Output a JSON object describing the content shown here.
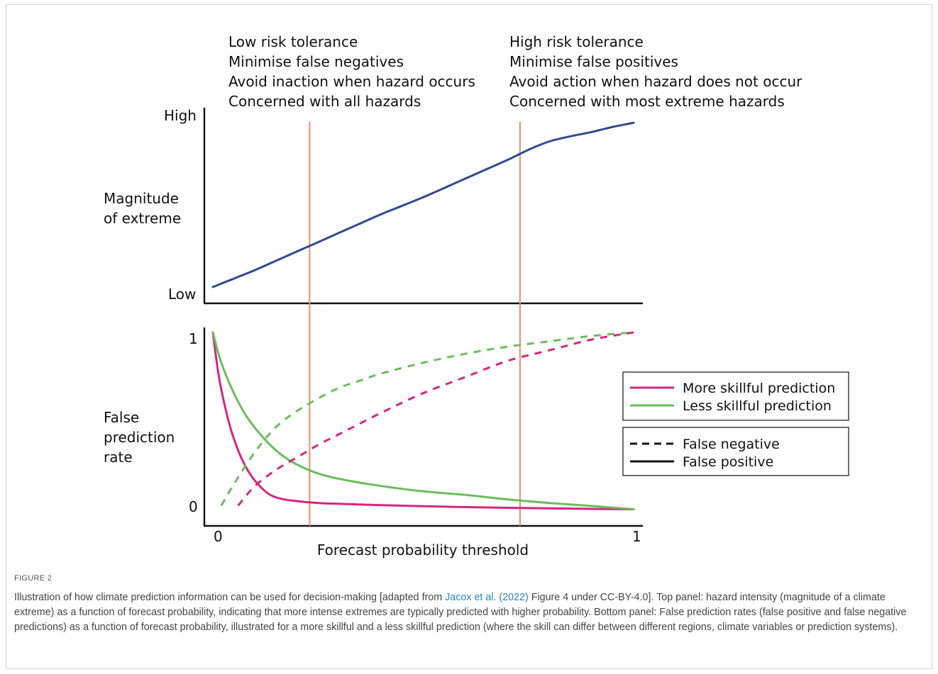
{
  "figure_label": "FIGURE 2",
  "caption": {
    "before_link": "Illustration of how climate prediction information can be used for decision-making [adapted from ",
    "link_text": "Jacox et al. (2022)",
    "after_link": " Figure 4 under CC-BY-4.0]. Top panel: hazard intensity (magnitude of a climate extreme) as a function of forecast probability, indicating that more intense extremes are typically predicted with higher probability. Bottom panel: False prediction rates (false positive and false negative predictions) as a function of forecast probability, illustrated for a more skillful and a less skillful prediction (where the skill can differ between different regions, climate variables or prediction systems)."
  },
  "annotations": {
    "left": [
      "Low risk tolerance",
      "Minimise false negatives",
      "Avoid inaction when hazard occurs",
      "Concerned with all hazards"
    ],
    "right": [
      "High risk tolerance",
      "Minimise false positives",
      "Avoid action when hazard does not occur",
      "Concerned with most extreme hazards"
    ]
  },
  "colors": {
    "magnitude_line": "#2e4a94",
    "threshold_line": "#ec8a66",
    "more_skillful": "#d6267f",
    "less_skillful": "#6bbd5b",
    "axis": "#111111"
  },
  "chart_data": [
    {
      "type": "line",
      "panel": "top",
      "ylabel": [
        "Magnitude",
        "of extreme"
      ],
      "y_tick_labels": [
        "High",
        "Low"
      ],
      "x_range": [
        0,
        1
      ],
      "y_range": [
        0,
        1
      ],
      "series": [
        {
          "x": [
            0,
            0.05,
            0.1,
            0.15,
            0.2,
            0.25,
            0.3,
            0.35,
            0.4,
            0.45,
            0.5,
            0.55,
            0.6,
            0.65,
            0.7,
            0.75,
            0.8,
            0.85,
            0.9,
            0.95,
            1
          ],
          "values": [
            0,
            0.05,
            0.1,
            0.155,
            0.21,
            0.265,
            0.32,
            0.375,
            0.43,
            0.48,
            0.53,
            0.585,
            0.64,
            0.695,
            0.75,
            0.81,
            0.86,
            0.89,
            0.915,
            0.945,
            0.97
          ]
        }
      ],
      "vertical_lines_x": [
        0.23,
        0.73
      ]
    },
    {
      "type": "line",
      "panel": "bottom",
      "ylabel": [
        "False",
        "prediction",
        "rate"
      ],
      "xlabel": "Forecast probability threshold",
      "x_tick_labels": [
        "0",
        "1"
      ],
      "y_tick_labels": [
        "1",
        "0"
      ],
      "x_range": [
        0,
        1
      ],
      "y_range": [
        0,
        1
      ],
      "series": [
        {
          "color_key": "more_skillful",
          "dash": "solid",
          "x": [
            0,
            0.01,
            0.02,
            0.04,
            0.06,
            0.08,
            0.1,
            0.13,
            0.16,
            0.2,
            0.25,
            0.3,
            0.4,
            0.5,
            0.6,
            0.7,
            0.8,
            0.9,
            1
          ],
          "values": [
            1,
            0.82,
            0.68,
            0.48,
            0.34,
            0.24,
            0.17,
            0.1,
            0.07,
            0.055,
            0.045,
            0.04,
            0.033,
            0.027,
            0.022,
            0.018,
            0.015,
            0.012,
            0.01
          ]
        },
        {
          "color_key": "less_skillful",
          "dash": "solid",
          "x": [
            0,
            0.02,
            0.05,
            0.08,
            0.12,
            0.16,
            0.2,
            0.25,
            0.3,
            0.4,
            0.5,
            0.6,
            0.7,
            0.8,
            0.9,
            1
          ],
          "values": [
            1,
            0.83,
            0.66,
            0.53,
            0.41,
            0.32,
            0.26,
            0.21,
            0.18,
            0.14,
            0.11,
            0.09,
            0.065,
            0.045,
            0.028,
            0.01
          ]
        },
        {
          "color_key": "less_skillful",
          "dash": "dashed",
          "x": [
            0.02,
            0.05,
            0.1,
            0.15,
            0.2,
            0.25,
            0.3,
            0.35,
            0.4,
            0.5,
            0.6,
            0.7,
            0.8,
            0.9,
            1
          ],
          "values": [
            0.03,
            0.15,
            0.33,
            0.47,
            0.56,
            0.63,
            0.69,
            0.73,
            0.77,
            0.83,
            0.88,
            0.92,
            0.95,
            0.98,
            1
          ]
        },
        {
          "color_key": "more_skillful",
          "dash": "dashed",
          "x": [
            0.06,
            0.1,
            0.15,
            0.2,
            0.25,
            0.3,
            0.35,
            0.4,
            0.5,
            0.6,
            0.7,
            0.8,
            0.9,
            1
          ],
          "values": [
            0.03,
            0.14,
            0.23,
            0.3,
            0.37,
            0.43,
            0.49,
            0.55,
            0.66,
            0.75,
            0.84,
            0.9,
            0.96,
            1
          ]
        }
      ],
      "vertical_lines_x": [
        0.23,
        0.73
      ],
      "legend_skill": [
        {
          "label": "More skillful prediction",
          "color_key": "more_skillful"
        },
        {
          "label": "Less skillful prediction",
          "color_key": "less_skillful"
        }
      ],
      "legend_type": [
        {
          "label": "False negative",
          "dash": "dashed"
        },
        {
          "label": "False positive",
          "dash": "solid"
        }
      ]
    }
  ]
}
